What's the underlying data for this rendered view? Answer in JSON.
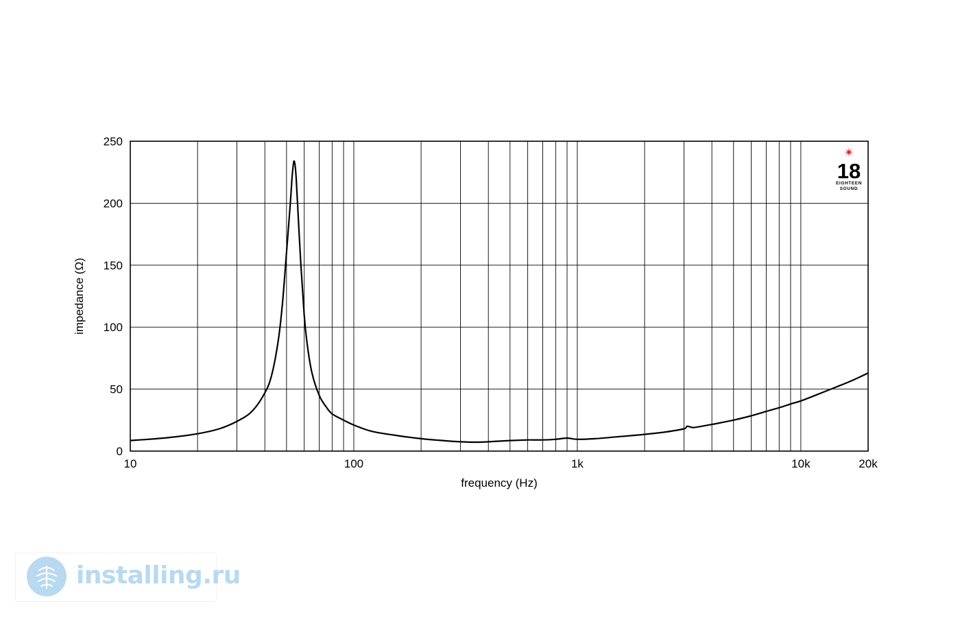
{
  "chart_data": {
    "type": "line",
    "title": "",
    "xlabel": "frequency (Hz)",
    "ylabel": "impedance (Ω)",
    "x_scale": "log",
    "xlim": [
      10,
      20000
    ],
    "ylim": [
      0,
      250
    ],
    "x_tick_labels": [
      {
        "value": 10,
        "label": "10"
      },
      {
        "value": 100,
        "label": "100"
      },
      {
        "value": 1000,
        "label": "1k"
      },
      {
        "value": 10000,
        "label": "10k"
      },
      {
        "value": 20000,
        "label": "20k"
      }
    ],
    "y_ticks": [
      0,
      50,
      100,
      150,
      200,
      250
    ],
    "grid": true,
    "series": [
      {
        "points": [
          [
            10,
            8.5
          ],
          [
            12,
            9.5
          ],
          [
            15,
            11
          ],
          [
            20,
            14
          ],
          [
            25,
            18
          ],
          [
            30,
            24
          ],
          [
            35,
            32
          ],
          [
            40,
            47
          ],
          [
            43,
            62
          ],
          [
            46,
            90
          ],
          [
            48,
            120
          ],
          [
            50,
            160
          ],
          [
            52,
            200
          ],
          [
            53,
            222
          ],
          [
            54,
            234
          ],
          [
            55,
            225
          ],
          [
            56,
            200
          ],
          [
            58,
            150
          ],
          [
            60,
            110
          ],
          [
            62,
            85
          ],
          [
            65,
            63
          ],
          [
            70,
            45
          ],
          [
            75,
            36
          ],
          [
            80,
            30
          ],
          [
            90,
            25
          ],
          [
            100,
            21
          ],
          [
            120,
            16
          ],
          [
            150,
            13
          ],
          [
            200,
            10
          ],
          [
            250,
            8.5
          ],
          [
            300,
            7.5
          ],
          [
            350,
            7.2
          ],
          [
            400,
            7.5
          ],
          [
            500,
            8.5
          ],
          [
            600,
            9
          ],
          [
            700,
            9
          ],
          [
            800,
            9.5
          ],
          [
            900,
            10.5
          ],
          [
            1000,
            9.5
          ],
          [
            1200,
            10
          ],
          [
            1500,
            11.5
          ],
          [
            2000,
            13.5
          ],
          [
            2500,
            15.5
          ],
          [
            3000,
            18
          ],
          [
            3100,
            20
          ],
          [
            3300,
            19
          ],
          [
            3600,
            20
          ],
          [
            4000,
            21.5
          ],
          [
            5000,
            25
          ],
          [
            6000,
            28.5
          ],
          [
            7000,
            32
          ],
          [
            8000,
            35
          ],
          [
            9000,
            38
          ],
          [
            10000,
            40.5
          ],
          [
            12000,
            46
          ],
          [
            15000,
            53
          ],
          [
            17000,
            57
          ],
          [
            20000,
            63
          ]
        ]
      }
    ]
  },
  "logo": {
    "number": "18",
    "line1": "EIGHTEEN",
    "line2": "SOUND",
    "star_color": "#d61f2a"
  },
  "watermark": {
    "text": "installing.ru",
    "color": "#b8d9f0"
  }
}
